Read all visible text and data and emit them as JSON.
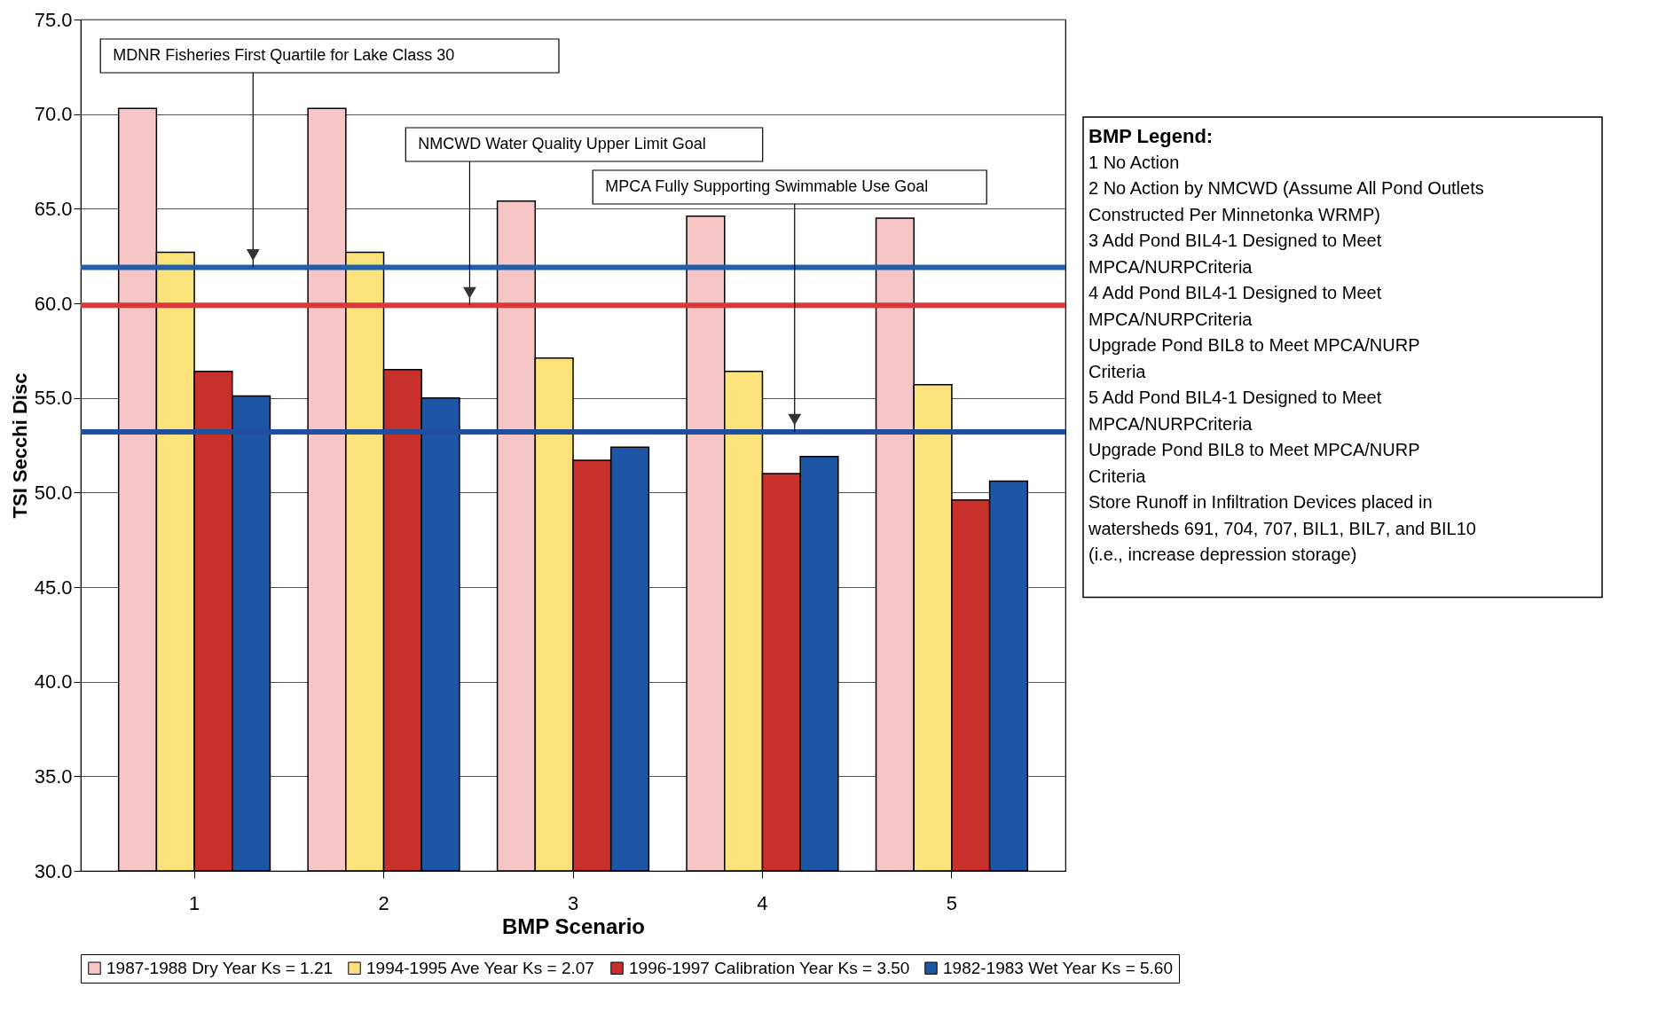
{
  "chart_data": {
    "type": "bar",
    "xlabel": "BMP Scenario",
    "ylabel": "TSI Secchi Disc",
    "categories": [
      "1",
      "2",
      "3",
      "4",
      "5"
    ],
    "series": [
      {
        "name": "1987-1988 Dry Year Ks = 1.21",
        "color": "#f6c6c6",
        "values": [
          70.3,
          70.3,
          65.4,
          64.6,
          64.5
        ]
      },
      {
        "name": "1994-1995 Ave Year Ks = 2.07",
        "color": "#fbe27a",
        "values": [
          62.7,
          62.7,
          57.1,
          56.4,
          55.7
        ]
      },
      {
        "name": "1996-1997 Calibration Year Ks = 3.50",
        "color": "#c8302c",
        "values": [
          56.4,
          56.5,
          51.7,
          51.0,
          49.6
        ]
      },
      {
        "name": "1982-1983 Wet Year Ks = 5.60",
        "color": "#1f55a5",
        "values": [
          55.1,
          55.0,
          52.4,
          51.9,
          50.6
        ]
      }
    ],
    "ylim": [
      30,
      75
    ],
    "yticks": [
      {
        "value": 30,
        "label": "30.0"
      },
      {
        "value": 35,
        "label": "35.0"
      },
      {
        "value": 40,
        "label": "40.0"
      },
      {
        "value": 45,
        "label": "45.0"
      },
      {
        "value": 50,
        "label": "50.0"
      },
      {
        "value": 55,
        "label": "55.0"
      },
      {
        "value": 60,
        "label": "60.0"
      },
      {
        "value": 65,
        "label": "65.0"
      },
      {
        "value": 70,
        "label": "70.0"
      },
      {
        "value": 75,
        "label": "75.0"
      }
    ],
    "ref_lines": [
      {
        "axis": "y",
        "value": 61.9,
        "label": "MDNR Fisheries First Quartile for Lake Class 30",
        "color": "#1f5fae"
      },
      {
        "axis": "y",
        "value": 59.9,
        "label": "NMCWD Water Quality Upper Limit Goal",
        "color": "#d63a3a"
      },
      {
        "axis": "y",
        "value": 53.2,
        "label": "MPCA Fully Supporting Swimmable Use Goal",
        "color": "#1f4f9e"
      }
    ],
    "annotations": [
      "BMP Legend:",
      "1   No Action",
      "2   No Action by NMCWD (Assume All Pond Outlets",
      "     Constructed Per Minnetonka WRMP)",
      "3   Add Pond BIL4-1 Designed to Meet",
      "     MPCA/NURPCriteria",
      "4   Add Pond BIL4-1 Designed to Meet",
      "     MPCA/NURPCriteria",
      "     Upgrade Pond BIL8 to Meet MPCA/NURP",
      "     Criteria",
      "5   Add Pond BIL4-1 Designed to Meet",
      "     MPCA/NURPCriteria",
      "     Upgrade Pond BIL8 to Meet MPCA/NURP",
      "     Criteria",
      "     Store Runoff in Infiltration Devices placed in",
      "      watersheds  691, 704, 707, BIL1, BIL7,  and BIL10",
      "      (i.e., increase depression storage)"
    ],
    "grid": "y",
    "legend": "bottom"
  }
}
